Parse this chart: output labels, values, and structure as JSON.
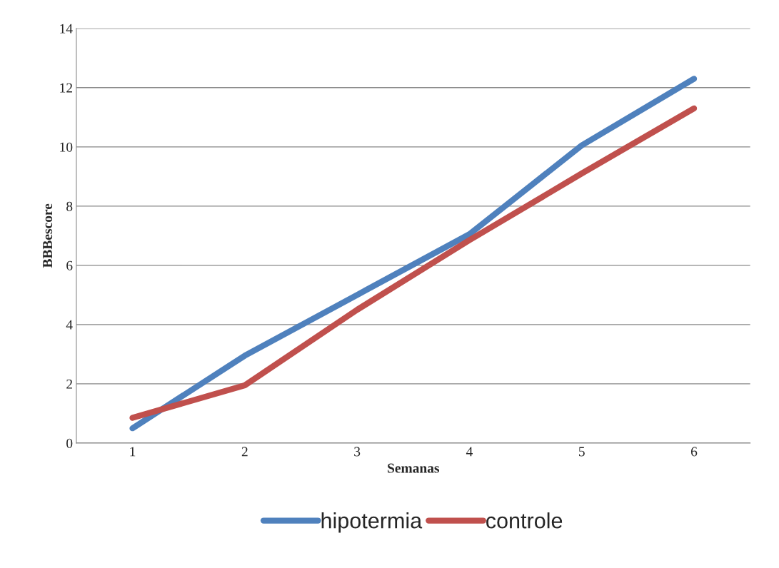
{
  "chart_data": {
    "type": "line",
    "xlabel": "Semanas",
    "ylabel": "BBBescore",
    "categories": [
      "1",
      "2",
      "3",
      "4",
      "5",
      "6"
    ],
    "series": [
      {
        "name": "hipotermia",
        "color": "#4f81bd",
        "values": [
          0.5,
          2.95,
          5.0,
          7.05,
          10.05,
          12.3
        ]
      },
      {
        "name": "controle",
        "color": "#c0504d",
        "values": [
          0.85,
          1.95,
          4.5,
          6.85,
          9.1,
          11.3
        ]
      }
    ],
    "ylim": [
      0,
      14
    ],
    "yticks": [
      0,
      2,
      4,
      6,
      8,
      10,
      12,
      14
    ],
    "grid": "y",
    "legend": "bottom",
    "marker": "none",
    "line_style": "solid"
  }
}
